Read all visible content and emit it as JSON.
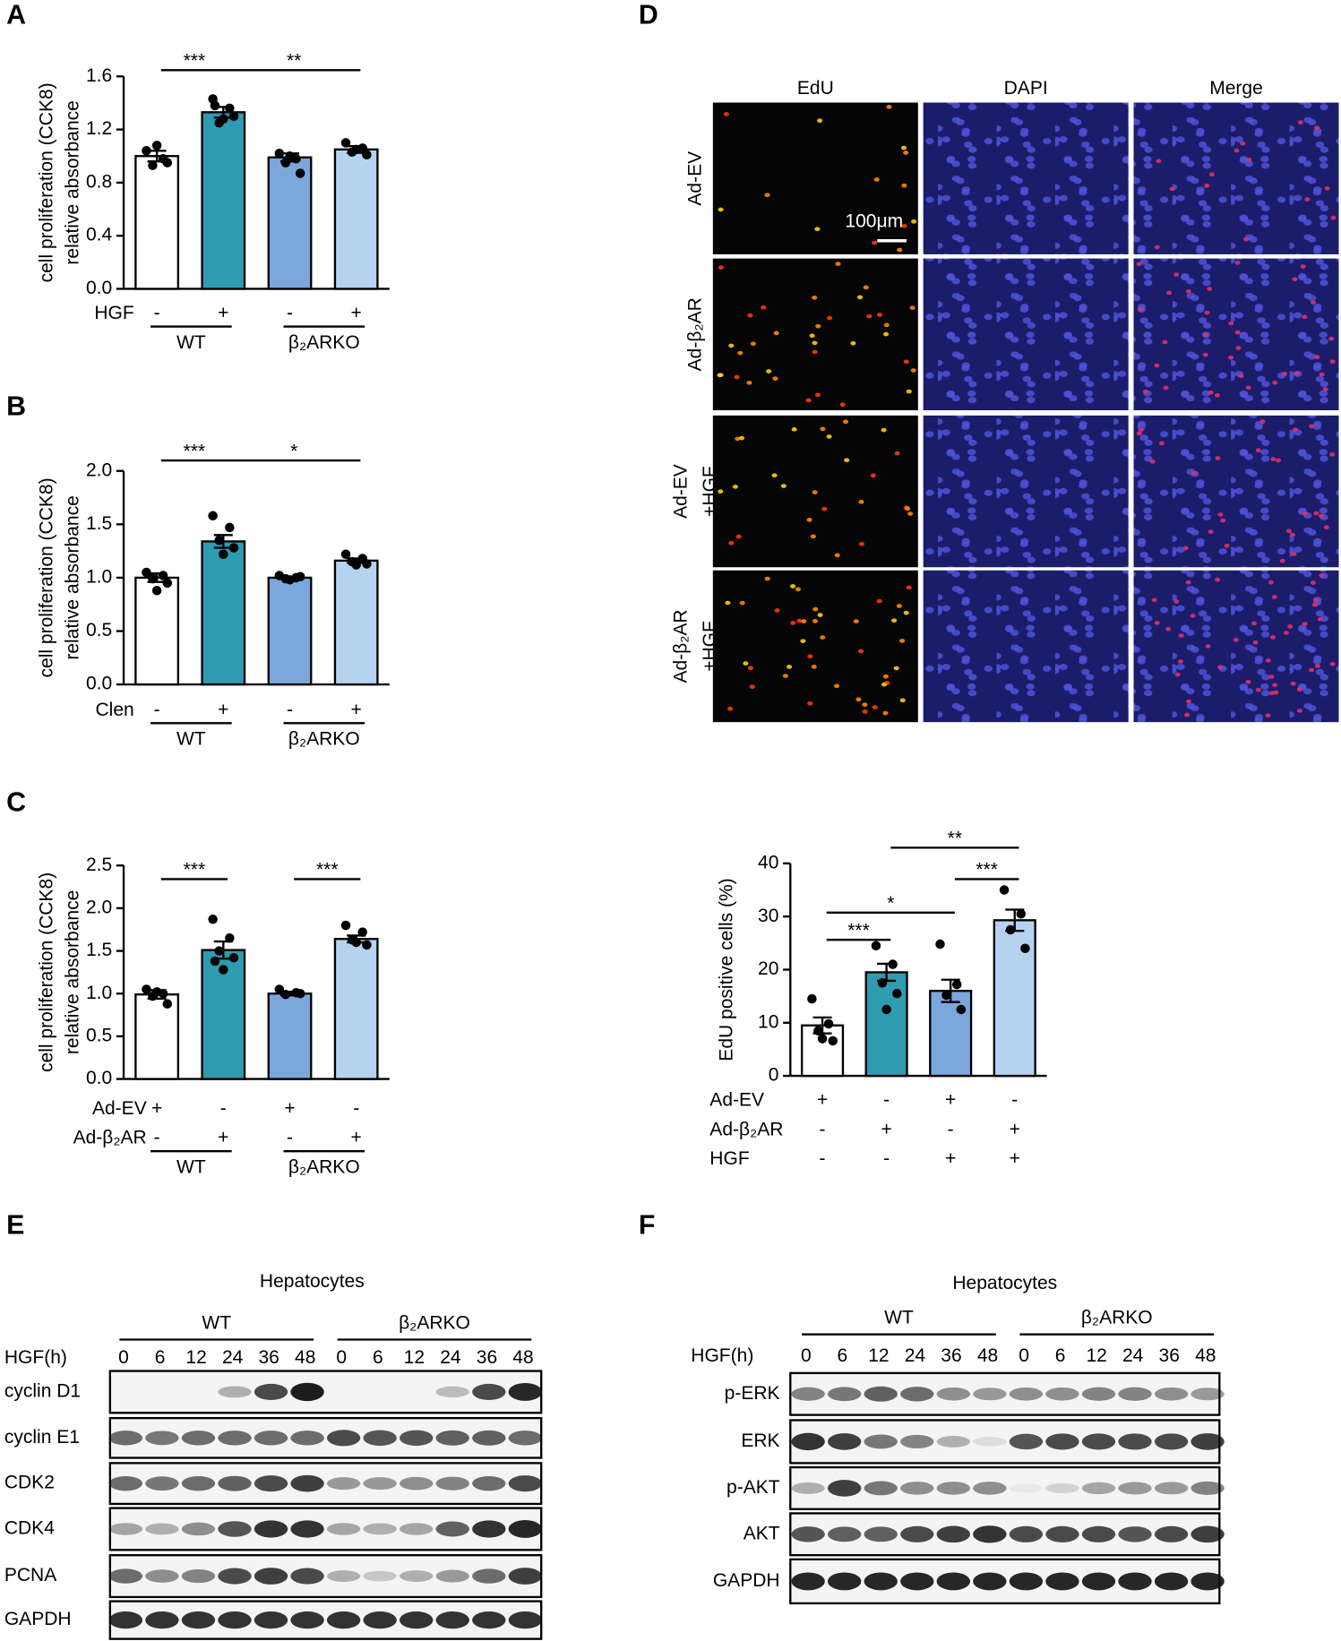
{
  "panels": [
    "A",
    "B",
    "C",
    "D",
    "E",
    "F"
  ],
  "chart_data": [
    {
      "type": "bar",
      "ylabel": [
        "cell proliferation (CCK8)",
        "relative absorbance"
      ],
      "categories": [
        null,
        null,
        null,
        null
      ],
      "values": [
        1.0,
        1.33,
        0.99,
        1.05
      ],
      "errors": [
        0.04,
        0.04,
        0.03,
        0.025
      ],
      "points": [
        [
          1.04,
          0.98,
          0.93,
          0.95,
          1.08
        ],
        [
          1.43,
          1.36,
          1.25,
          1.3,
          1.28,
          1.38
        ],
        [
          1.02,
          0.98,
          0.95,
          0.87,
          1.0
        ],
        [
          1.1,
          1.06,
          1.03,
          1.01,
          1.05
        ]
      ],
      "colors": [
        "#ffffff",
        "#2e9bb0",
        "#7ba7dc",
        "#b5d3ef"
      ],
      "ylim": [
        0,
        1.6
      ],
      "yticks": [
        {
          "value": 0,
          "label": "0.0"
        },
        0.4,
        0.8,
        1.2,
        1.6
      ],
      "treatments": [
        {
          "name": "HGF",
          "signs": [
            "-",
            "+",
            "-",
            "+"
          ]
        }
      ],
      "groups": [
        {
          "name": "WT",
          "span": [
            0,
            1
          ]
        },
        {
          "name": "β₂ARKO",
          "span": [
            2,
            3
          ]
        }
      ],
      "significance": [
        {
          "pair": [
            0,
            1
          ],
          "label": "***"
        },
        {
          "pair": [
            1,
            3
          ],
          "label": "**"
        }
      ]
    },
    {
      "type": "bar",
      "ylabel": [
        "cell proliferation (CCK8)",
        "relative absorbance"
      ],
      "categories": [
        null,
        null,
        null,
        null
      ],
      "values": [
        1.0,
        1.34,
        1.0,
        1.16
      ],
      "errors": [
        0.04,
        0.06,
        0.01,
        0.02
      ],
      "points": [
        [
          1.05,
          1.02,
          0.99,
          0.95,
          0.88
        ],
        [
          1.58,
          1.47,
          1.35,
          1.28,
          1.22
        ],
        [
          1.02,
          1.0,
          0.99,
          1.01,
          0.98
        ],
        [
          1.22,
          1.18,
          1.15,
          1.13,
          1.12
        ]
      ],
      "colors": [
        "#ffffff",
        "#2e9bb0",
        "#7ba7dc",
        "#b5d3ef"
      ],
      "ylim": [
        0,
        2
      ],
      "yticks": [
        {
          "value": 0,
          "label": "0.0"
        },
        0.5,
        {
          "value": 1,
          "label": "1.0"
        },
        1.5,
        {
          "value": 2,
          "label": "2.0"
        }
      ],
      "treatments": [
        {
          "name": "Clen",
          "signs": [
            "-",
            "+",
            "-",
            "+"
          ]
        }
      ],
      "groups": [
        {
          "name": "WT",
          "span": [
            0,
            1
          ]
        },
        {
          "name": "β₂ARKO",
          "span": [
            2,
            3
          ]
        }
      ],
      "significance": [
        {
          "pair": [
            0,
            1
          ],
          "label": "***"
        },
        {
          "pair": [
            1,
            3
          ],
          "label": "*"
        }
      ]
    },
    {
      "type": "bar",
      "ylabel": [
        "cell proliferation (CCK8)",
        "relative absorbance"
      ],
      "categories": [
        null,
        null,
        null,
        null
      ],
      "values": [
        0.99,
        1.51,
        1.0,
        1.64
      ],
      "errors": [
        0.05,
        0.1,
        0.02,
        0.04
      ],
      "points": [
        [
          1.05,
          1.0,
          0.97,
          0.88,
          1.02
        ],
        [
          1.87,
          1.65,
          1.5,
          1.42,
          1.28,
          1.38
        ],
        [
          1.05,
          1.01,
          0.99,
          1.0
        ],
        [
          1.8,
          1.72,
          1.63,
          1.57,
          1.6
        ]
      ],
      "colors": [
        "#ffffff",
        "#2e9bb0",
        "#7ba7dc",
        "#b5d3ef"
      ],
      "ylim": [
        0,
        2.5
      ],
      "yticks": [
        {
          "value": 0,
          "label": "0.0"
        },
        0.5,
        {
          "value": 1,
          "label": "1.0"
        },
        1.5,
        {
          "value": 2,
          "label": "2.0"
        },
        2.5
      ],
      "treatments": [
        {
          "name": "Ad-EV",
          "signs": [
            "+",
            "-",
            "+",
            "-"
          ]
        },
        {
          "name": "Ad-β₂AR",
          "signs": [
            "-",
            "+",
            "-",
            "+"
          ]
        }
      ],
      "groups": [
        {
          "name": "WT",
          "span": [
            0,
            1
          ]
        },
        {
          "name": "β₂ARKO",
          "span": [
            2,
            3
          ]
        }
      ],
      "significance": [
        {
          "pair": [
            0,
            1
          ],
          "label": "***"
        },
        {
          "pair": [
            2,
            3
          ],
          "label": "***"
        }
      ]
    },
    {
      "type": "bar",
      "ylabel": [
        "EdU positive cells (%)"
      ],
      "categories": [
        null,
        null,
        null,
        null
      ],
      "values": [
        9.5,
        19.5,
        16,
        29.3
      ],
      "errors": [
        1.5,
        1.6,
        2.1,
        2.0
      ],
      "points": [
        [
          14.5,
          9.8,
          8.5,
          6.6,
          7.0
        ],
        [
          24.5,
          21,
          17.5,
          15.5,
          12.5
        ],
        [
          24.8,
          17.2,
          15.2,
          12.5
        ],
        [
          35,
          30.5,
          27.5,
          24
        ]
      ],
      "colors": [
        "#ffffff",
        "#2e9bb0",
        "#7ba7dc",
        "#b5d3ef"
      ],
      "ylim": [
        0,
        40
      ],
      "yticks": [
        0,
        10,
        20,
        30,
        40
      ],
      "treatments": [
        {
          "name": "Ad-EV",
          "signs": [
            "+",
            "-",
            "+",
            "-"
          ]
        },
        {
          "name": "Ad-β₂AR",
          "signs": [
            "-",
            "+",
            "-",
            "+"
          ]
        },
        {
          "name": "HGF",
          "signs": [
            "-",
            "-",
            "+",
            "+"
          ]
        }
      ],
      "groups": [],
      "significance": [
        {
          "pair": [
            0,
            1
          ],
          "label": "***"
        },
        {
          "pair": [
            0,
            2
          ],
          "label": "*"
        },
        {
          "pair": [
            1,
            3
          ],
          "label": "**"
        },
        {
          "pair": [
            2,
            3
          ],
          "label": "***"
        }
      ]
    }
  ],
  "microscopy": {
    "columns": [
      "EdU",
      "DAPI",
      "Merge"
    ],
    "rows": [
      [
        "Ad-EV"
      ],
      [
        "Ad-β₂AR"
      ],
      [
        "Ad-EV",
        "+HGF"
      ],
      [
        "Ad-β₂AR",
        "+HGF"
      ]
    ],
    "scale_bar": "100μm"
  },
  "blots": [
    {
      "title": "Hepatocytes",
      "groups": [
        "WT",
        "β₂ARKO"
      ],
      "time_label": "HGF(h)",
      "timepoints": [
        "0",
        "6",
        "12",
        "24",
        "36",
        "48",
        "0",
        "6",
        "12",
        "24",
        "36",
        "48"
      ],
      "proteins": [
        "cyclin D1",
        "cyclin E1",
        "CDK2",
        "CDK4",
        "PCNA",
        "GAPDH"
      ]
    },
    {
      "title": "Hepatocytes",
      "groups": [
        "WT",
        "β₂ARKO"
      ],
      "time_label": "HGF(h)",
      "timepoints": [
        "0",
        "6",
        "12",
        "24",
        "36",
        "48",
        "0",
        "6",
        "12",
        "24",
        "36",
        "48"
      ],
      "proteins": [
        "p-ERK",
        "ERK",
        "p-AKT",
        "AKT",
        "GAPDH"
      ]
    }
  ]
}
